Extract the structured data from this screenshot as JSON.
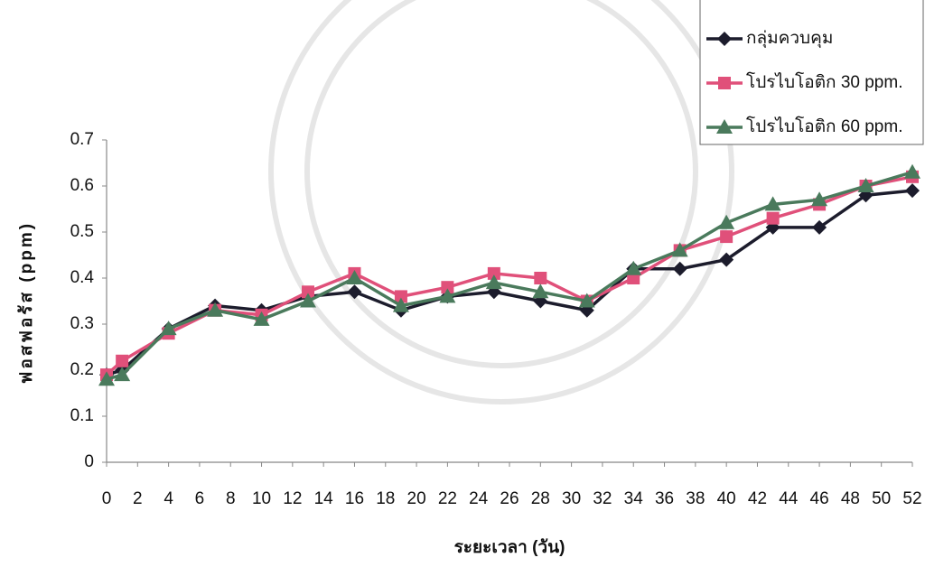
{
  "chart_data": {
    "type": "line",
    "x_label": "ระยะเวลา (วัน)",
    "y_label": "ฟอสฟอรัส (ppm)",
    "x": [
      0,
      1,
      4,
      7,
      10,
      13,
      16,
      19,
      22,
      25,
      28,
      31,
      34,
      37,
      40,
      43,
      46,
      49,
      52
    ],
    "series": [
      {
        "name": "กลุ่มควบคุม",
        "color": "#1c1c2c",
        "marker": "diamond",
        "values": [
          0.19,
          0.2,
          0.29,
          0.34,
          0.33,
          0.36,
          0.37,
          0.33,
          0.36,
          0.37,
          0.35,
          0.33,
          0.42,
          0.42,
          0.44,
          0.51,
          0.51,
          0.58,
          0.59
        ]
      },
      {
        "name": "โปรไบโอติก 30 ppm.",
        "color": "#e0507a",
        "marker": "square",
        "values": [
          0.19,
          0.22,
          0.28,
          0.33,
          0.32,
          0.37,
          0.41,
          0.36,
          0.38,
          0.41,
          0.4,
          0.35,
          0.4,
          0.46,
          0.49,
          0.53,
          0.56,
          0.6,
          0.62
        ]
      },
      {
        "name": "โปรไบโอติก 60 ppm.",
        "color": "#4a7a5c",
        "marker": "triangle",
        "values": [
          0.18,
          0.19,
          0.29,
          0.33,
          0.31,
          0.35,
          0.4,
          0.34,
          0.36,
          0.39,
          0.37,
          0.35,
          0.42,
          0.46,
          0.52,
          0.56,
          0.57,
          0.6,
          0.63
        ]
      }
    ],
    "xlim": [
      0,
      52
    ],
    "xticks": [
      0,
      2,
      4,
      6,
      8,
      10,
      12,
      14,
      16,
      18,
      20,
      22,
      24,
      26,
      28,
      30,
      32,
      34,
      36,
      38,
      40,
      42,
      44,
      46,
      48,
      50,
      52
    ],
    "ylim": [
      0,
      0.7
    ],
    "yticks": [
      0,
      0.1,
      0.2,
      0.3,
      0.4,
      0.5,
      0.6,
      0.7
    ],
    "legend": "top-right"
  }
}
